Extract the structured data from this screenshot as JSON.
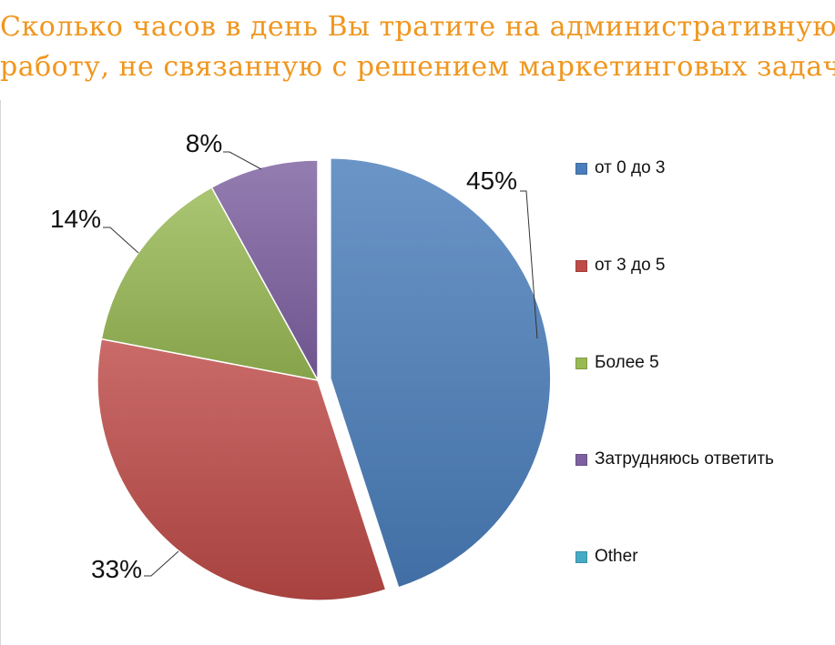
{
  "chart_data": {
    "type": "pie",
    "title_lines": [
      "Сколько часов в день Вы тратите на административную",
      "работу, не связанную с решением маркетинговых задач?"
    ],
    "slices": [
      {
        "name": "от 0 до 3",
        "value": 45,
        "label": "45%",
        "color": "#4A7EBB",
        "exploded": true
      },
      {
        "name": "от 3 до 5",
        "value": 33,
        "label": "33%",
        "color": "#BE4B48"
      },
      {
        "name": "Более 5",
        "value": 14,
        "label": "14%",
        "color": "#98B954"
      },
      {
        "name": "Затрудняюсь ответить",
        "value": 8,
        "label": "8%",
        "color": "#7D60A0"
      },
      {
        "name": "Other",
        "value": 0,
        "label": "",
        "color": "#46AAC5"
      }
    ],
    "legend_position": "right"
  }
}
